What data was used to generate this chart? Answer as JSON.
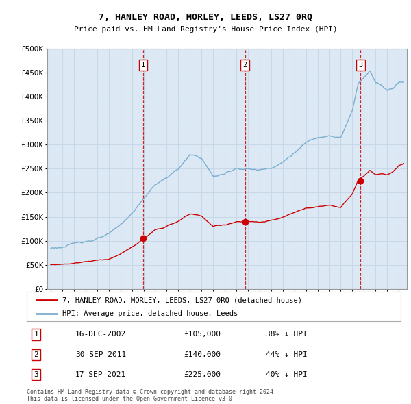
{
  "title1": "7, HANLEY ROAD, MORLEY, LEEDS, LS27 0RQ",
  "title2": "Price paid vs. HM Land Registry's House Price Index (HPI)",
  "sale_prices": [
    105000,
    140000,
    225000
  ],
  "sale_labels": [
    "1",
    "2",
    "3"
  ],
  "sale_times": [
    2002.958,
    2011.747,
    2021.708
  ],
  "sale_info": [
    [
      "1",
      "16-DEC-2002",
      "£105,000",
      "38% ↓ HPI"
    ],
    [
      "2",
      "30-SEP-2011",
      "£140,000",
      "44% ↓ HPI"
    ],
    [
      "3",
      "17-SEP-2021",
      "£225,000",
      "40% ↓ HPI"
    ]
  ],
  "legend_entries": [
    "7, HANLEY ROAD, MORLEY, LEEDS, LS27 0RQ (detached house)",
    "HPI: Average price, detached house, Leeds"
  ],
  "red_color": "#cc0000",
  "blue_color": "#7aadcf",
  "dashed_color": "#cc0000",
  "plot_bg_color": "#dce9f5",
  "grid_color": "#c8d8e8",
  "footer": "Contains HM Land Registry data © Crown copyright and database right 2024.\nThis data is licensed under the Open Government Licence v3.0.",
  "ylim": [
    0,
    500000
  ],
  "yticks": [
    0,
    50000,
    100000,
    150000,
    200000,
    250000,
    300000,
    350000,
    400000,
    450000,
    500000
  ],
  "xlim": [
    1994.7,
    2025.7
  ]
}
